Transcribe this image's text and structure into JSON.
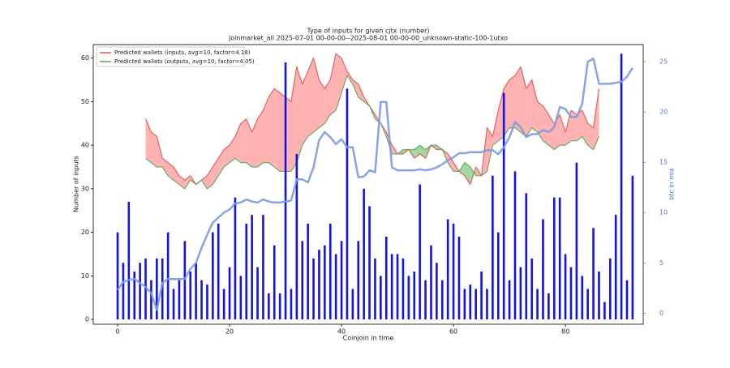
{
  "chart_data": {
    "type": "bar",
    "title": "Type of inputs for given cjtx (number)",
    "subtitle": "joinmarket_all 2025-07-01 00-00-00--2025-08-01 00-00-00_unknown-static-100-1utxo",
    "xlabel": "Coinjoin in time",
    "ylabel": "Number of inputs",
    "y2label": "btc in mix",
    "x": [
      0,
      1,
      2,
      3,
      4,
      5,
      6,
      7,
      8,
      9,
      10,
      11,
      12,
      13,
      14,
      15,
      16,
      17,
      18,
      19,
      20,
      21,
      22,
      23,
      24,
      25,
      26,
      27,
      28,
      29,
      30,
      31,
      32,
      33,
      34,
      35,
      36,
      37,
      38,
      39,
      40,
      41,
      42,
      43,
      44,
      45,
      46,
      47,
      48,
      49,
      50,
      51,
      52,
      53,
      54,
      55,
      56,
      57,
      58,
      59,
      60,
      61,
      62,
      63,
      64,
      65,
      66,
      67,
      68,
      69,
      70,
      71,
      72,
      73,
      74,
      75,
      76,
      77,
      78,
      79,
      80,
      81,
      82,
      83,
      84,
      85,
      86,
      87,
      88,
      89,
      90,
      91,
      92
    ],
    "xlim": [
      -4.35,
      93.9
    ],
    "xticks": [
      0,
      20,
      40,
      60,
      80
    ],
    "ylim": [
      -1.1,
      63.1
    ],
    "yticks": [
      0,
      10,
      20,
      30,
      40,
      50,
      60
    ],
    "y2lim": [
      -1.1,
      26.7
    ],
    "y2ticks": [
      0,
      5,
      10,
      15,
      20,
      25
    ],
    "legend": "upper left",
    "bar_color": "#1414e0",
    "bar_values": [
      20,
      13,
      27,
      11,
      13,
      14,
      9,
      14,
      14,
      20,
      7,
      9,
      18,
      11,
      13,
      9,
      8,
      20,
      22,
      7,
      12,
      28,
      10,
      22,
      24,
      12,
      24,
      6,
      17,
      6,
      59,
      7,
      38,
      18,
      22,
      14,
      16,
      17,
      22,
      15,
      18,
      53,
      7,
      18,
      30,
      26,
      14,
      10,
      19,
      15,
      15,
      14,
      10,
      11,
      31,
      9,
      17,
      13,
      9,
      23,
      22,
      19,
      7,
      8,
      7,
      11,
      7,
      33,
      20,
      52,
      9,
      34,
      12,
      29,
      14,
      7,
      23,
      6,
      28,
      28,
      15,
      12,
      36,
      10,
      7,
      21,
      11,
      4,
      14,
      24,
      61,
      9,
      33
    ],
    "btc": {
      "color": "#7b9ae6",
      "axis": "y2",
      "values": [
        2.3,
        3.1,
        3.3,
        3.4,
        3.0,
        2.6,
        2.0,
        0.3,
        3.0,
        3.4,
        3.4,
        3.4,
        3.4,
        4.4,
        5.0,
        6.5,
        7.8,
        9.0,
        9.5,
        10.0,
        10.3,
        10.9,
        11.0,
        11.3,
        11.1,
        11.0,
        11.3,
        11.1,
        11.0,
        11.0,
        11.1,
        11.2,
        13.3,
        13.3,
        13.0,
        14.5,
        17.2,
        18.0,
        17.5,
        16.8,
        17.3,
        16.5,
        16.5,
        13.5,
        13.6,
        14.2,
        14.0,
        21.0,
        21.0,
        14.5,
        14.2,
        14.2,
        14.2,
        14.2,
        14.3,
        14.2,
        14.3,
        14.5,
        14.8,
        15.2,
        15.5,
        15.9,
        15.9,
        16.0,
        16.0,
        16.0,
        16.2,
        16.2,
        15.8,
        16.5,
        17.5,
        19.0,
        18.5,
        17.5,
        17.8,
        17.8,
        18.2,
        18.0,
        18.5,
        20.5,
        20.3,
        19.5,
        19.5,
        20.8,
        25.0,
        25.3,
        22.8,
        22.8,
        22.8,
        22.9,
        23.0,
        23.5,
        24.4
      ]
    },
    "series": [
      {
        "name": "Predicted wallets (inputs, avg=10, factor=4.18)",
        "color": "#e05555",
        "values": [
          null,
          null,
          null,
          null,
          null,
          46,
          43,
          42,
          37,
          36,
          35,
          33,
          32,
          33,
          31,
          32,
          33,
          35,
          37,
          39,
          40,
          42,
          45,
          46,
          43,
          46,
          48,
          51,
          53,
          52,
          51,
          50,
          58,
          54,
          57,
          60,
          55,
          53,
          55,
          61,
          60,
          57,
          55,
          54,
          51,
          49,
          47,
          45,
          43,
          40,
          38,
          38,
          39,
          37,
          38,
          37,
          40,
          39,
          39,
          38,
          36,
          34,
          33,
          31,
          35,
          33,
          44,
          42,
          48,
          53,
          55,
          56,
          58,
          53,
          55,
          50,
          49,
          47,
          45,
          47,
          43,
          48,
          47,
          48,
          45,
          44,
          53,
          null,
          null,
          null,
          null,
          null,
          null
        ]
      },
      {
        "name": "Predicted wallets (outputs, avg=10, factor=4.05)",
        "color": "#5aa85a",
        "values": [
          null,
          null,
          null,
          null,
          null,
          37,
          36,
          35,
          35,
          33,
          32,
          31,
          30,
          32,
          31,
          32,
          30,
          31,
          33,
          35,
          36,
          37,
          36,
          36,
          35,
          35,
          36,
          36,
          35,
          34,
          34,
          34,
          36,
          40,
          42,
          43,
          44,
          45,
          47,
          48,
          52,
          56,
          54,
          51,
          50,
          49,
          46,
          45,
          42,
          38,
          38,
          39,
          39,
          39,
          40,
          39,
          40,
          40,
          39,
          36,
          34,
          34,
          36,
          35,
          33,
          33,
          34,
          40,
          41,
          42,
          44,
          44,
          43,
          42,
          44,
          43,
          41,
          40,
          39,
          40,
          40,
          41,
          41,
          42,
          40,
          39,
          42,
          null,
          null,
          null,
          null,
          null,
          null
        ]
      }
    ]
  }
}
